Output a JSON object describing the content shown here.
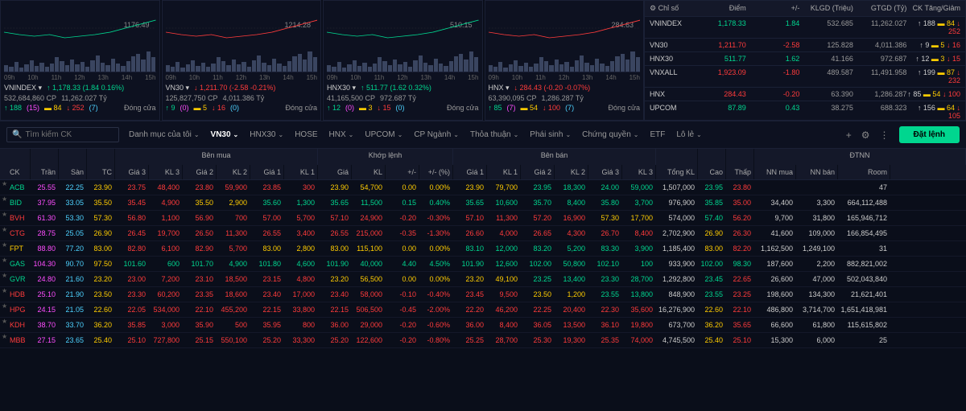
{
  "charts": [
    {
      "name": "VNINDEX",
      "ref": "1176.49",
      "value": "1,178.33",
      "chg": "(1.84 0.16%)",
      "dir": "up",
      "vol": "532,684,860 CP",
      "val": "11,262.027 Tỷ",
      "up": "188",
      "ref_n": "15",
      "flat": "84",
      "down": "252",
      "dn_n": "7",
      "status": "Đóng cửa",
      "times": [
        "09h",
        "10h",
        "11h",
        "12h",
        "13h",
        "14h",
        "15h"
      ]
    },
    {
      "name": "VN30",
      "ref": "1214.28",
      "value": "1,211.70",
      "chg": "(-2.58 -0.21%)",
      "dir": "down",
      "vol": "125,827,750 CP",
      "val": "4,011.386 Tỷ",
      "up": "9",
      "ref_n": "0",
      "flat": "5",
      "down": "16",
      "dn_n": "0",
      "status": "Đóng cửa",
      "times": [
        "09h",
        "10h",
        "11h",
        "12h",
        "13h",
        "14h",
        "15h"
      ]
    },
    {
      "name": "HNX30",
      "ref": "510.15",
      "value": "511.77",
      "chg": "(1.62 0.32%)",
      "dir": "up",
      "vol": "41,165,500 CP",
      "val": "972.687 Tỷ",
      "up": "12",
      "ref_n": "0",
      "flat": "3",
      "down": "15",
      "dn_n": "0",
      "status": "Đóng cửa",
      "times": [
        "09h",
        "10h",
        "11h",
        "12h",
        "13h",
        "14h",
        "15h"
      ]
    },
    {
      "name": "HNX",
      "ref": "284.63",
      "value": "284.43",
      "chg": "(-0.20 -0.07%)",
      "dir": "down",
      "vol": "63,390,095 CP",
      "val": "1,286.287 Tỷ",
      "up": "85",
      "ref_n": "7",
      "flat": "54",
      "down": "100",
      "dn_n": "7",
      "status": "Đóng cửa",
      "times": [
        "09h",
        "10h",
        "11h",
        "12h",
        "13h",
        "14h",
        "15h"
      ]
    }
  ],
  "idx_headers": [
    "Chỉ số",
    "Điểm",
    "+/-",
    "KLGD (Triệu)",
    "GTGD (Tỷ)",
    "CK Tăng/Giảm"
  ],
  "indices": [
    {
      "name": "VNINDEX",
      "pt": "1,178.33",
      "pt_c": "c-up",
      "chg": "1.84",
      "chg_c": "c-up",
      "vol": "532.685",
      "val": "11,262.027",
      "up": "188",
      "flat": "84",
      "down": "252"
    },
    {
      "name": "VN30",
      "pt": "1,211.70",
      "pt_c": "c-down",
      "chg": "-2.58",
      "chg_c": "c-down",
      "vol": "125.828",
      "val": "4,011.386",
      "up": "9",
      "flat": "5",
      "down": "16"
    },
    {
      "name": "HNX30",
      "pt": "511.77",
      "pt_c": "c-up",
      "chg": "1.62",
      "chg_c": "c-up",
      "vol": "41.166",
      "val": "972.687",
      "up": "12",
      "flat": "3",
      "down": "15"
    },
    {
      "name": "VNXALL",
      "pt": "1,923.09",
      "pt_c": "c-down",
      "chg": "-1.80",
      "chg_c": "c-down",
      "vol": "489.587",
      "val": "11,491.958",
      "up": "199",
      "flat": "87",
      "down": "232"
    },
    {
      "name": "HNX",
      "pt": "284.43",
      "pt_c": "c-down",
      "chg": "-0.20",
      "chg_c": "c-down",
      "vol": "63.390",
      "val": "1,286.287",
      "up": "85",
      "flat": "54",
      "down": "100"
    },
    {
      "name": "UPCOM",
      "pt": "87.89",
      "pt_c": "c-up",
      "chg": "0.43",
      "chg_c": "c-up",
      "vol": "38.275",
      "val": "688.323",
      "up": "156",
      "flat": "64",
      "down": "105"
    }
  ],
  "toolbar": {
    "search_ph": "Tìm kiếm CK",
    "tabs": [
      "Danh mục của tôi",
      "VN30",
      "HNX30",
      "HOSE",
      "HNX",
      "UPCOM",
      "CP Ngành",
      "Thỏa thuận",
      "Phái sinh",
      "Chứng quyền",
      "ETF",
      "Lô lẻ"
    ],
    "active": "VN30",
    "order_btn": "Đặt lệnh"
  },
  "table": {
    "groups": {
      "buy": "Bên mua",
      "match": "Khớp lệnh",
      "sell": "Bên bán",
      "foreign": "ĐTNN"
    },
    "cols": {
      "ck": "CK",
      "ceil": "Trần",
      "floor": "Sàn",
      "tc": "TC",
      "g3": "Giá 3",
      "kl3": "KL 3",
      "g2": "Giá 2",
      "kl2": "KL 2",
      "g1": "Giá 1",
      "kl1": "KL 1",
      "gia": "Giá",
      "kl": "KL",
      "pm": "+/-",
      "pmp": "+/- (%)",
      "sg1": "Giá 1",
      "skl1": "KL 1",
      "sg2": "Giá 2",
      "skl2": "KL 2",
      "sg3": "Giá 3",
      "skl3": "KL 3",
      "tong": "Tổng KL",
      "cao": "Cao",
      "thap": "Thấp",
      "nnmua": "NN mua",
      "nnban": "NN bán",
      "room": "Room"
    },
    "rows": [
      {
        "ck": "ACB",
        "ck_c": "c-up",
        "ceil": "25.55",
        "floor": "22.25",
        "tc": "23.90",
        "bg3": "23.75",
        "bg3_c": "c-down",
        "bkl3": "48,400",
        "bg2": "23.80",
        "bg2_c": "c-down",
        "bkl2": "59,900",
        "bg1": "23.85",
        "bg1_c": "c-down",
        "bkl1": "300",
        "gia": "23.90",
        "gia_c": "c-ref",
        "kl": "54,700",
        "pm": "0.00",
        "pm_c": "c-ref",
        "pmp": "0.00%",
        "sg1": "23.90",
        "sg1_c": "c-ref",
        "skl1": "79,700",
        "sg2": "23.95",
        "sg2_c": "c-up",
        "skl2": "18,300",
        "sg3": "24.00",
        "sg3_c": "c-up",
        "skl3": "59,000",
        "tong": "1,507,000",
        "cao": "23.95",
        "cao_c": "c-up",
        "thap": "23.80",
        "thap_c": "c-down",
        "nnmua": "",
        "nnban": "",
        "room": "47"
      },
      {
        "ck": "BID",
        "ck_c": "c-up",
        "ceil": "37.95",
        "floor": "33.05",
        "tc": "35.50",
        "bg3": "35.45",
        "bg3_c": "c-down",
        "bkl3": "4,900",
        "bg2": "35.50",
        "bg2_c": "c-ref",
        "bkl2": "2,900",
        "bg1": "35.60",
        "bg1_c": "c-up",
        "bkl1": "1,300",
        "gia": "35.65",
        "gia_c": "c-up",
        "kl": "11,500",
        "pm": "0.15",
        "pm_c": "c-up",
        "pmp": "0.40%",
        "sg1": "35.65",
        "sg1_c": "c-up",
        "skl1": "10,600",
        "sg2": "35.70",
        "sg2_c": "c-up",
        "skl2": "8,400",
        "sg3": "35.80",
        "sg3_c": "c-up",
        "skl3": "3,700",
        "tong": "976,900",
        "cao": "35.85",
        "cao_c": "c-up",
        "thap": "35.00",
        "thap_c": "c-down",
        "nnmua": "34,400",
        "nnban": "3,300",
        "room": "664,112,488"
      },
      {
        "ck": "BVH",
        "ck_c": "c-down",
        "ceil": "61.30",
        "floor": "53.30",
        "tc": "57.30",
        "bg3": "56.80",
        "bg3_c": "c-down",
        "bkl3": "1,100",
        "bg2": "56.90",
        "bg2_c": "c-down",
        "bkl2": "700",
        "bg1": "57.00",
        "bg1_c": "c-down",
        "bkl1": "5,700",
        "gia": "57.10",
        "gia_c": "c-down",
        "kl": "24,900",
        "pm": "-0.20",
        "pm_c": "c-down",
        "pmp": "-0.30%",
        "sg1": "57.10",
        "sg1_c": "c-down",
        "skl1": "11,300",
        "sg2": "57.20",
        "sg2_c": "c-down",
        "skl2": "16,900",
        "sg3": "57.30",
        "sg3_c": "c-ref",
        "skl3": "17,700",
        "tong": "574,000",
        "cao": "57.40",
        "cao_c": "c-up",
        "thap": "56.20",
        "thap_c": "c-down",
        "nnmua": "9,700",
        "nnban": "31,800",
        "room": "165,946,712"
      },
      {
        "ck": "CTG",
        "ck_c": "c-down",
        "ceil": "28.75",
        "floor": "25.05",
        "tc": "26.90",
        "bg3": "26.45",
        "bg3_c": "c-down",
        "bkl3": "19,700",
        "bg2": "26.50",
        "bg2_c": "c-down",
        "bkl2": "11,300",
        "bg1": "26.55",
        "bg1_c": "c-down",
        "bkl1": "3,400",
        "gia": "26.55",
        "gia_c": "c-down",
        "kl": "215,000",
        "pm": "-0.35",
        "pm_c": "c-down",
        "pmp": "-1.30%",
        "sg1": "26.60",
        "sg1_c": "c-down",
        "skl1": "4,000",
        "sg2": "26.65",
        "sg2_c": "c-down",
        "skl2": "4,300",
        "sg3": "26.70",
        "sg3_c": "c-down",
        "skl3": "8,400",
        "tong": "2,702,900",
        "cao": "26.90",
        "cao_c": "c-ref",
        "thap": "26.30",
        "thap_c": "c-down",
        "nnmua": "41,600",
        "nnban": "109,000",
        "room": "166,854,495"
      },
      {
        "ck": "FPT",
        "ck_c": "c-ref",
        "ceil": "88.80",
        "floor": "77.20",
        "tc": "83.00",
        "bg3": "82.80",
        "bg3_c": "c-down",
        "bkl3": "6,100",
        "bg2": "82.90",
        "bg2_c": "c-down",
        "bkl2": "5,700",
        "bg1": "83.00",
        "bg1_c": "c-ref",
        "bkl1": "2,800",
        "gia": "83.00",
        "gia_c": "c-ref",
        "kl": "115,100",
        "pm": "0.00",
        "pm_c": "c-ref",
        "pmp": "0.00%",
        "sg1": "83.10",
        "sg1_c": "c-up",
        "skl1": "12,000",
        "sg2": "83.20",
        "sg2_c": "c-up",
        "skl2": "5,200",
        "sg3": "83.30",
        "sg3_c": "c-up",
        "skl3": "3,900",
        "tong": "1,185,400",
        "cao": "83.00",
        "cao_c": "c-ref",
        "thap": "82.20",
        "thap_c": "c-down",
        "nnmua": "1,162,500",
        "nnban": "1,249,100",
        "room": "31"
      },
      {
        "ck": "GAS",
        "ck_c": "c-up",
        "ceil": "104.30",
        "floor": "90.70",
        "tc": "97.50",
        "bg3": "101.60",
        "bg3_c": "c-up",
        "bkl3": "600",
        "bg2": "101.70",
        "bg2_c": "c-up",
        "bkl2": "4,900",
        "bg1": "101.80",
        "bg1_c": "c-up",
        "bkl1": "4,600",
        "gia": "101.90",
        "gia_c": "c-up",
        "kl": "40,000",
        "pm": "4.40",
        "pm_c": "c-up",
        "pmp": "4.50%",
        "sg1": "101.90",
        "sg1_c": "c-up",
        "skl1": "12,600",
        "sg2": "102.00",
        "sg2_c": "c-up",
        "skl2": "50,800",
        "sg3": "102.10",
        "sg3_c": "c-up",
        "skl3": "100",
        "tong": "933,900",
        "cao": "102.00",
        "cao_c": "c-up",
        "thap": "98.30",
        "thap_c": "c-up",
        "nnmua": "187,600",
        "nnban": "2,200",
        "room": "882,821,002"
      },
      {
        "ck": "GVR",
        "ck_c": "c-up",
        "ceil": "24.80",
        "floor": "21.60",
        "tc": "23.20",
        "bg3": "23.00",
        "bg3_c": "c-down",
        "bkl3": "7,200",
        "bg2": "23.10",
        "bg2_c": "c-down",
        "bkl2": "18,500",
        "bg1": "23.15",
        "bg1_c": "c-down",
        "bkl1": "4,800",
        "gia": "23.20",
        "gia_c": "c-ref",
        "kl": "56,500",
        "pm": "0.00",
        "pm_c": "c-ref",
        "pmp": "0.00%",
        "sg1": "23.20",
        "sg1_c": "c-ref",
        "skl1": "49,100",
        "sg2": "23.25",
        "sg2_c": "c-up",
        "skl2": "13,400",
        "sg3": "23.30",
        "sg3_c": "c-up",
        "skl3": "28,700",
        "tong": "1,292,800",
        "cao": "23.45",
        "cao_c": "c-up",
        "thap": "22.65",
        "thap_c": "c-down",
        "nnmua": "26,600",
        "nnban": "47,000",
        "room": "502,043,840"
      },
      {
        "ck": "HDB",
        "ck_c": "c-down",
        "ceil": "25.10",
        "floor": "21.90",
        "tc": "23.50",
        "bg3": "23.30",
        "bg3_c": "c-down",
        "bkl3": "60,200",
        "bg2": "23.35",
        "bg2_c": "c-down",
        "bkl2": "18,600",
        "bg1": "23.40",
        "bg1_c": "c-down",
        "bkl1": "17,000",
        "gia": "23.40",
        "gia_c": "c-down",
        "kl": "58,000",
        "pm": "-0.10",
        "pm_c": "c-down",
        "pmp": "-0.40%",
        "sg1": "23.45",
        "sg1_c": "c-down",
        "skl1": "9,500",
        "sg2": "23.50",
        "sg2_c": "c-ref",
        "skl2": "1,200",
        "sg3": "23.55",
        "sg3_c": "c-up",
        "skl3": "13,800",
        "tong": "848,900",
        "cao": "23.55",
        "cao_c": "c-up",
        "thap": "23.25",
        "thap_c": "c-down",
        "nnmua": "198,600",
        "nnban": "134,300",
        "room": "21,621,401"
      },
      {
        "ck": "HPG",
        "ck_c": "c-down",
        "ceil": "24.15",
        "floor": "21.05",
        "tc": "22.60",
        "bg3": "22.05",
        "bg3_c": "c-down",
        "bkl3": "534,000",
        "bg2": "22.10",
        "bg2_c": "c-down",
        "bkl2": "455,200",
        "bg1": "22.15",
        "bg1_c": "c-down",
        "bkl1": "33,800",
        "gia": "22.15",
        "gia_c": "c-down",
        "kl": "506,500",
        "pm": "-0.45",
        "pm_c": "c-down",
        "pmp": "-2.00%",
        "sg1": "22.20",
        "sg1_c": "c-down",
        "skl1": "46,200",
        "sg2": "22.25",
        "sg2_c": "c-down",
        "skl2": "20,400",
        "sg3": "22.30",
        "sg3_c": "c-down",
        "skl3": "35,600",
        "tong": "16,276,900",
        "cao": "22.60",
        "cao_c": "c-ref",
        "thap": "22.10",
        "thap_c": "c-down",
        "nnmua": "486,800",
        "nnban": "3,714,700",
        "room": "1,651,418,981"
      },
      {
        "ck": "KDH",
        "ck_c": "c-down",
        "ceil": "38.70",
        "floor": "33.70",
        "tc": "36.20",
        "bg3": "35.85",
        "bg3_c": "c-down",
        "bkl3": "3,000",
        "bg2": "35.90",
        "bg2_c": "c-down",
        "bkl2": "500",
        "bg1": "35.95",
        "bg1_c": "c-down",
        "bkl1": "800",
        "gia": "36.00",
        "gia_c": "c-down",
        "kl": "29,000",
        "pm": "-0.20",
        "pm_c": "c-down",
        "pmp": "-0.60%",
        "sg1": "36.00",
        "sg1_c": "c-down",
        "skl1": "8,400",
        "sg2": "36.05",
        "sg2_c": "c-down",
        "skl2": "13,500",
        "sg3": "36.10",
        "sg3_c": "c-down",
        "skl3": "19,800",
        "tong": "673,700",
        "cao": "36.20",
        "cao_c": "c-ref",
        "thap": "35.65",
        "thap_c": "c-down",
        "nnmua": "66,600",
        "nnban": "61,800",
        "room": "115,615,802"
      },
      {
        "ck": "MBB",
        "ck_c": "c-down",
        "ceil": "27.15",
        "floor": "23.65",
        "tc": "25.40",
        "bg3": "25.10",
        "bg3_c": "c-down",
        "bkl3": "727,800",
        "bg2": "25.15",
        "bg2_c": "c-down",
        "bkl2": "550,100",
        "bg1": "25.20",
        "bg1_c": "c-down",
        "bkl1": "33,300",
        "gia": "25.20",
        "gia_c": "c-down",
        "kl": "122,600",
        "pm": "-0.20",
        "pm_c": "c-down",
        "pmp": "-0.80%",
        "sg1": "25.25",
        "sg1_c": "c-down",
        "skl1": "28,700",
        "sg2": "25.30",
        "sg2_c": "c-down",
        "skl2": "19,300",
        "sg3": "25.35",
        "sg3_c": "c-down",
        "skl3": "74,000",
        "tong": "4,745,500",
        "cao": "25.40",
        "cao_c": "c-ref",
        "thap": "25.10",
        "thap_c": "c-down",
        "nnmua": "15,300",
        "nnban": "6,000",
        "room": "25"
      }
    ]
  }
}
